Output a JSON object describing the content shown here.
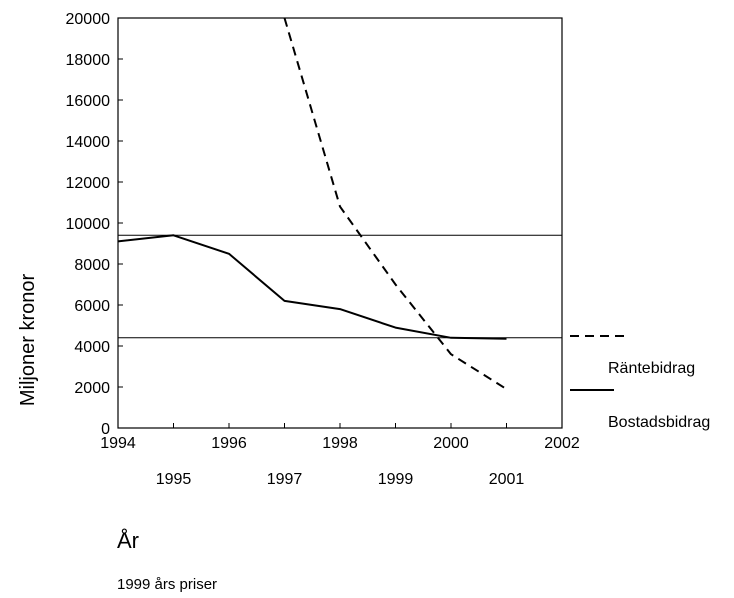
{
  "chart_data": {
    "type": "line",
    "ylabel": "Miljoner kronor",
    "xlabel": "År",
    "note": "1999 års priser",
    "xlim": [
      1994,
      2002
    ],
    "ylim": [
      0,
      20000
    ],
    "x_ticks_upper": [
      "1994",
      "1996",
      "1998",
      "2000",
      "2002"
    ],
    "x_ticks_lower": [
      "1995",
      "1997",
      "1999",
      "2001"
    ],
    "y_ticks": [
      "20000",
      "18000",
      "16000",
      "14000",
      "12000",
      "10000",
      "8000",
      "6000",
      "4000",
      "2000",
      "0"
    ],
    "reference_lines": [
      9400,
      4400
    ],
    "series": [
      {
        "name": "Räntebidrag",
        "style": "dashed",
        "x": [
          1997,
          1998,
          1999,
          2000,
          2001
        ],
        "y": [
          20000,
          10800,
          7000,
          3600,
          1900
        ]
      },
      {
        "name": "Bostadsbidrag",
        "style": "solid",
        "x": [
          1994,
          1995,
          1996,
          1997,
          1998,
          1999,
          2000,
          2001
        ],
        "y": [
          9100,
          9400,
          8500,
          6200,
          5800,
          4900,
          4400,
          4350
        ]
      }
    ]
  }
}
